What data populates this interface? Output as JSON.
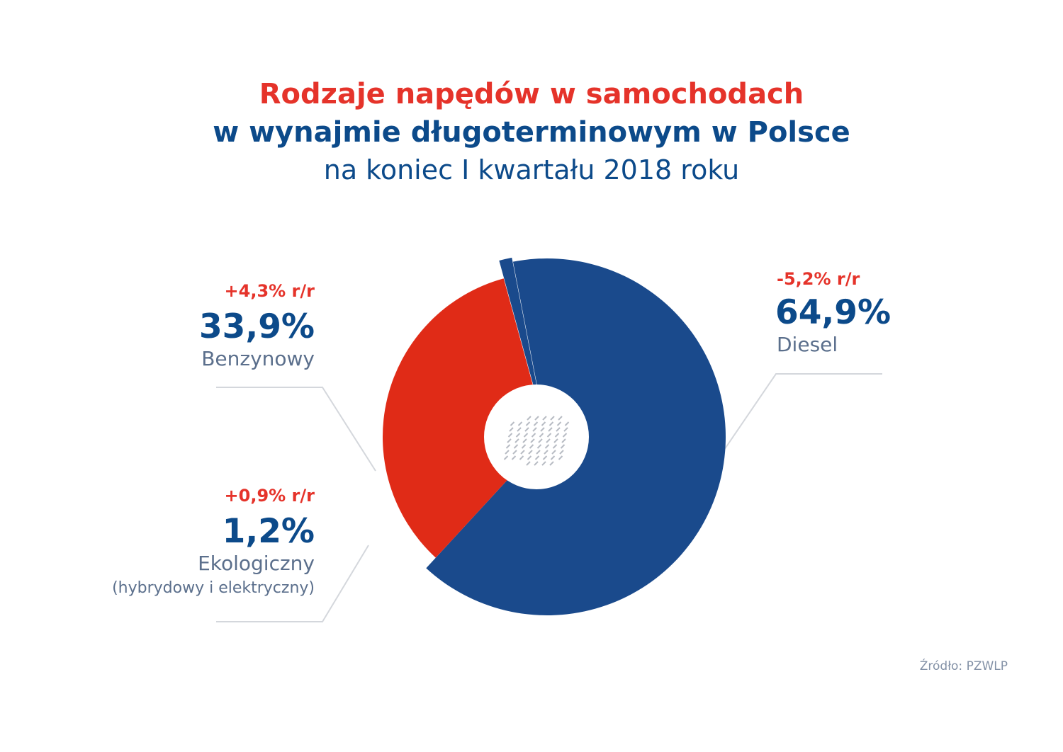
{
  "title": {
    "line1": "Rodzaje napędów w samochodach",
    "line2": "w wynajmie długoterminowym w Polsce",
    "line3": "na koniec I kwartału 2018 roku"
  },
  "source": "Źródło: PZWLP",
  "colors": {
    "diesel": "#1a4a8c",
    "benzyna": "#e02b17",
    "eko": "#1a4a8c",
    "title_red": "#e5332a",
    "title_blue": "#0c4a8a"
  },
  "chart_data": {
    "type": "pie",
    "title": "Rodzaje napędów w samochodach w wynajmie długoterminowym w Polsce",
    "subtitle": "na koniec I kwartału 2018 roku",
    "series": [
      {
        "name": "Diesel",
        "value": 64.9,
        "label": "64,9%",
        "change": "-5,2% r/r"
      },
      {
        "name": "Benzynowy",
        "value": 33.9,
        "label": "33,9%",
        "change": "+4,3% r/r"
      },
      {
        "name": "Ekologiczny",
        "sublabel": "(hybrydowy i elektryczny)",
        "value": 1.2,
        "label": "1,2%",
        "change": "+0,9% r/r"
      }
    ]
  }
}
